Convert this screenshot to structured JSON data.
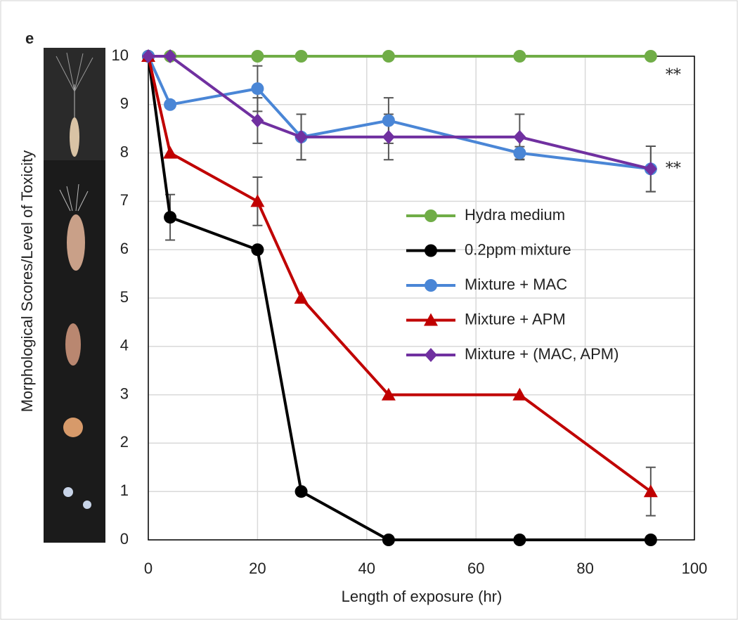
{
  "chart_data": {
    "type": "line",
    "panel_label": "e",
    "x_label": "Length of exposure (hr)",
    "y_label": "Morphological Scores/Level of Toxicity",
    "x": [
      0,
      4,
      20,
      28,
      44,
      68,
      92
    ],
    "series": [
      {
        "name": "Hydra medium",
        "color": "#70ad47",
        "marker": "circle",
        "values": [
          10,
          10,
          10,
          10,
          10,
          10,
          10
        ],
        "errors": [
          null,
          null,
          null,
          null,
          null,
          null,
          null
        ]
      },
      {
        "name": "0.2ppm mixture",
        "color": "#000000",
        "marker": "circle",
        "values": [
          10,
          6.67,
          6,
          1,
          0,
          0,
          0
        ],
        "errors": [
          null,
          0.47,
          null,
          null,
          null,
          null,
          null
        ]
      },
      {
        "name": "Mixture + MAC",
        "color": "#4a86d6",
        "marker": "circle",
        "values": [
          10,
          9,
          9.33,
          8.33,
          8.67,
          8,
          7.67
        ],
        "errors": [
          null,
          null,
          0.47,
          0.47,
          0.47,
          0.13,
          0.47
        ]
      },
      {
        "name": "Mixture + APM",
        "color": "#c00000",
        "marker": "triangle",
        "values": [
          10,
          8,
          7,
          5,
          3,
          3,
          1
        ],
        "errors": [
          null,
          null,
          0.5,
          null,
          null,
          null,
          0.5
        ]
      },
      {
        "name": "Mixture + (MAC, APM)",
        "color": "#7030a0",
        "marker": "diamond",
        "values": [
          10,
          10,
          8.67,
          8.33,
          8.33,
          8.33,
          7.67
        ],
        "errors": [
          null,
          null,
          0.47,
          0.47,
          0.47,
          0.47,
          0.47
        ]
      }
    ],
    "annotations": [
      {
        "text": "**",
        "x": 96,
        "y": 9.6
      },
      {
        "text": "**",
        "x": 96,
        "y": 7.67
      }
    ],
    "xlim": [
      0,
      100
    ],
    "xticks": [
      0,
      20,
      40,
      60,
      80,
      100
    ],
    "ylim": [
      0,
      10
    ],
    "yticks": [
      0,
      1,
      2,
      3,
      4,
      5,
      6,
      7,
      8,
      9,
      10
    ],
    "grid": true
  }
}
